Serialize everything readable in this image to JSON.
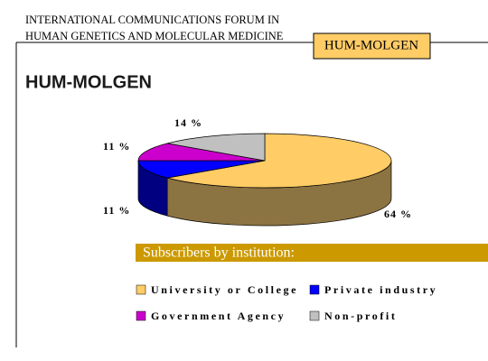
{
  "header": {
    "line1": "INTERNATIONAL COMMUNICATIONS FORUM IN",
    "line2": "HUMAN GENETICS AND MOLECULAR MEDICINE",
    "badge": "HUM-MOLGEN"
  },
  "chart_data": {
    "type": "pie",
    "title": "HUM-MOLGEN",
    "subtitle": "Subscribers by institution:",
    "categories": [
      "University or College",
      "Private industry",
      "Government Agency",
      "Non-profit"
    ],
    "values": [
      64,
      11,
      11,
      14
    ],
    "value_labels": [
      "64 %",
      "11 %",
      "11 %",
      "14 %"
    ],
    "colors": [
      "#ffcc66",
      "#0000ff",
      "#cc00cc",
      "#c0c0c0"
    ],
    "side_colors": [
      "#8c7342",
      "#000080",
      "#660066",
      "#808080"
    ]
  }
}
